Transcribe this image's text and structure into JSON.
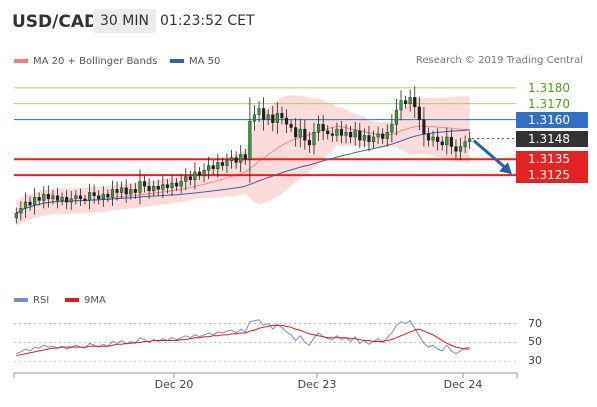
{
  "header": {
    "symbol": "USD/CAD",
    "timeframe": "30 MIN",
    "clock": "01:23:52 CET"
  },
  "legend_main": [
    {
      "label": "MA 20 + Bollinger Bands",
      "color": "#f08080"
    },
    {
      "label": "MA 50",
      "color": "#3b5ea8"
    }
  ],
  "legend_rsi": [
    {
      "label": "RSI",
      "color": "#6d8fd8"
    },
    {
      "label": "9MA",
      "color": "#d62020"
    }
  ],
  "credit": "Research © 2019 Trading Central",
  "colors": {
    "support": "#e32222",
    "resistance_line": "#8fbf5a",
    "pivot": "#2f6fc4",
    "current": "#333333",
    "arrow": "#2a5fa8",
    "band_fill": "#fbd5d5"
  },
  "chart_data": {
    "type": "candlestick",
    "ylim": [
      1.3062,
      1.319
    ],
    "x_ticks": [
      "Dec 20",
      "Dec 23",
      "Dec 24"
    ],
    "levels": [
      {
        "value": 1.318,
        "label": "1.3180",
        "style": "resistance"
      },
      {
        "value": 1.317,
        "label": "1.3170",
        "style": "resistance"
      },
      {
        "value": 1.316,
        "label": "1.3160",
        "style": "pivot"
      },
      {
        "value": 1.3148,
        "label": "1.3148",
        "style": "current"
      },
      {
        "value": 1.3135,
        "label": "1.3135",
        "style": "support"
      },
      {
        "value": 1.3125,
        "label": "1.3125",
        "style": "support"
      }
    ],
    "close": [
      1.3101,
      1.3104,
      1.3108,
      1.3106,
      1.3111,
      1.3109,
      1.3113,
      1.311,
      1.3112,
      1.3109,
      1.3111,
      1.3108,
      1.311,
      1.3112,
      1.311,
      1.3109,
      1.3114,
      1.3112,
      1.311,
      1.3113,
      1.3111,
      1.3116,
      1.3114,
      1.3117,
      1.3113,
      1.3116,
      1.3114,
      1.3121,
      1.3118,
      1.3115,
      1.3118,
      1.3116,
      1.3119,
      1.3117,
      1.312,
      1.3118,
      1.3121,
      1.3124,
      1.3122,
      1.3127,
      1.3125,
      1.3128,
      1.3131,
      1.3129,
      1.3133,
      1.3131,
      1.3134,
      1.3136,
      1.3133,
      1.3138,
      1.3135,
      1.3159,
      1.3163,
      1.3167,
      1.316,
      1.3163,
      1.3158,
      1.3164,
      1.3161,
      1.3157,
      1.3155,
      1.3149,
      1.3154,
      1.3147,
      1.3144,
      1.3152,
      1.3157,
      1.3153,
      1.3151,
      1.315,
      1.3154,
      1.315,
      1.3152,
      1.3149,
      1.3153,
      1.3147,
      1.315,
      1.3146,
      1.3149,
      1.3151,
      1.3148,
      1.3152,
      1.3157,
      1.3166,
      1.3172,
      1.317,
      1.3174,
      1.3168,
      1.316,
      1.3151,
      1.3147,
      1.3149,
      1.3146,
      1.3144,
      1.3149,
      1.3143,
      1.314,
      1.3143,
      1.3146,
      1.3148
    ],
    "rsi_ticks": [
      70,
      50,
      30
    ],
    "rsi_ylim": [
      25,
      78
    ],
    "rsi": [
      38,
      40,
      43,
      41,
      45,
      44,
      47,
      45,
      46,
      44,
      46,
      43,
      45,
      47,
      45,
      44,
      49,
      47,
      45,
      48,
      46,
      51,
      49,
      52,
      48,
      51,
      49,
      55,
      53,
      50,
      53,
      51,
      54,
      52,
      55,
      53,
      55,
      57,
      55,
      58,
      56,
      58,
      60,
      58,
      61,
      60,
      62,
      63,
      60,
      64,
      61,
      72,
      73,
      74,
      68,
      70,
      64,
      69,
      66,
      61,
      58,
      52,
      57,
      50,
      47,
      55,
      60,
      56,
      54,
      53,
      57,
      53,
      55,
      51,
      56,
      49,
      52,
      48,
      51,
      54,
      50,
      55,
      60,
      68,
      72,
      70,
      73,
      65,
      57,
      49,
      45,
      47,
      43,
      41,
      47,
      41,
      38,
      41,
      44,
      45
    ],
    "rsi_ma": [
      36,
      37,
      38,
      39,
      40,
      41,
      42,
      43,
      44,
      44,
      45,
      45,
      45,
      45,
      45,
      45,
      46,
      46,
      46,
      46,
      46,
      47,
      48,
      48,
      49,
      49,
      50,
      50,
      51,
      51,
      52,
      52,
      52,
      52,
      52,
      52,
      53,
      53,
      54,
      55,
      55,
      56,
      56,
      57,
      57,
      58,
      58,
      59,
      59,
      60,
      60,
      62,
      63,
      65,
      66,
      67,
      68,
      68,
      68,
      67,
      66,
      64,
      63,
      61,
      59,
      58,
      57,
      56,
      55,
      55,
      55,
      55,
      55,
      54,
      54,
      53,
      52,
      52,
      51,
      51,
      51,
      52,
      53,
      55,
      57,
      59,
      61,
      63,
      64,
      62,
      60,
      58,
      55,
      52,
      49,
      47,
      45,
      44,
      43,
      43
    ]
  }
}
